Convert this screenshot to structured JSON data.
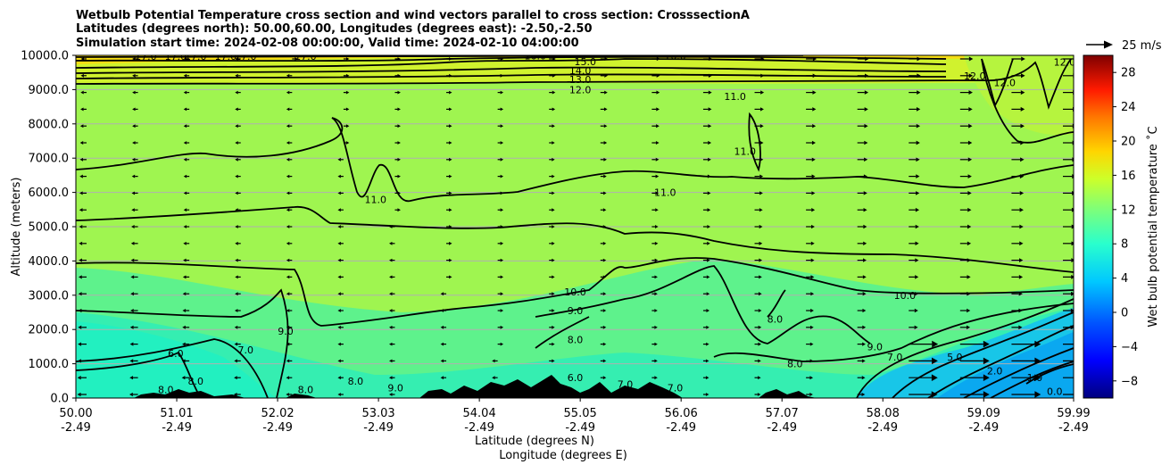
{
  "chart_data": {
    "type": "contour",
    "title_lines": [
      "Wetbulb Potential Temperature cross section and wind vectors parallel to cross section: CrosssectionA",
      "Latitudes (degrees north): 50.00,60.00, Longitudes (degrees east): -2.50,-2.50",
      "Simulation start time: 2024-02-08 00:00:00, Valid time: 2024-02-10 04:00:00"
    ],
    "xlabel_line1": "Latitude (degrees N)",
    "xlabel_line2": "Longitude (degrees E)",
    "ylabel": "Altitude (meters)",
    "x_ticks": [
      {
        "lat": "50.00",
        "lon": "-2.49"
      },
      {
        "lat": "51.01",
        "lon": "-2.49"
      },
      {
        "lat": "52.02",
        "lon": "-2.49"
      },
      {
        "lat": "53.03",
        "lon": "-2.49"
      },
      {
        "lat": "54.04",
        "lon": "-2.49"
      },
      {
        "lat": "55.05",
        "lon": "-2.49"
      },
      {
        "lat": "56.06",
        "lon": "-2.49"
      },
      {
        "lat": "57.07",
        "lon": "-2.49"
      },
      {
        "lat": "58.08",
        "lon": "-2.49"
      },
      {
        "lat": "59.09",
        "lon": "-2.49"
      },
      {
        "lat": "59.99",
        "lon": "-2.49"
      }
    ],
    "xlim": [
      50.0,
      59.99
    ],
    "y_ticks": [
      0,
      1000,
      2000,
      3000,
      4000,
      5000,
      6000,
      7000,
      8000,
      9000,
      10000
    ],
    "y_tick_labels": [
      "0.0",
      "1000.0",
      "2000.0",
      "3000.0",
      "4000.0",
      "5000.0",
      "6000.0",
      "7000.0",
      "8000.0",
      "9000.0",
      "10000.0"
    ],
    "ylim": [
      0,
      10000
    ],
    "grid": "horizontal",
    "colorbar": {
      "label": "Wet bulb potential temperature ˚C",
      "ticks": [
        -8,
        -4,
        0,
        4,
        8,
        12,
        16,
        20,
        24,
        28
      ],
      "tick_labels": [
        "−8",
        "−4",
        "0",
        "4",
        "8",
        "12",
        "16",
        "20",
        "24",
        "28"
      ],
      "range": [
        -10,
        30
      ],
      "colormap": "jet"
    },
    "quiver_key": {
      "label": "25 m/s",
      "speed": 25
    },
    "contour_labels": [
      {
        "text": "17.0",
        "lat": 50.7,
        "alt": 9980
      },
      {
        "text": "17.0",
        "lat": 51.0,
        "alt": 9980
      },
      {
        "text": "17.0",
        "lat": 51.2,
        "alt": 9980
      },
      {
        "text": "17.0",
        "lat": 51.5,
        "alt": 9980
      },
      {
        "text": "17.0",
        "lat": 51.7,
        "alt": 9980
      },
      {
        "text": "17.0",
        "lat": 52.3,
        "alt": 9980
      },
      {
        "text": "16.0",
        "lat": 54.6,
        "alt": 9990
      },
      {
        "text": "15.0",
        "lat": 55.1,
        "alt": 9820
      },
      {
        "text": "14.0",
        "lat": 55.05,
        "alt": 9560
      },
      {
        "text": "13.0",
        "lat": 55.05,
        "alt": 9300
      },
      {
        "text": "12.0",
        "lat": 55.05,
        "alt": 9000
      },
      {
        "text": "16.0",
        "lat": 56.0,
        "alt": 9990
      },
      {
        "text": "11.0",
        "lat": 56.6,
        "alt": 8800
      },
      {
        "text": "11.0",
        "lat": 56.7,
        "alt": 7200
      },
      {
        "text": "12.0",
        "lat": 59.3,
        "alt": 9200
      },
      {
        "text": "12.0",
        "lat": 59.0,
        "alt": 9400
      },
      {
        "text": "12.0",
        "lat": 59.9,
        "alt": 9800
      },
      {
        "text": "11.0",
        "lat": 53.0,
        "alt": 5800
      },
      {
        "text": "11.0",
        "lat": 55.9,
        "alt": 6000
      },
      {
        "text": "10.0",
        "lat": 55.0,
        "alt": 3100
      },
      {
        "text": "10.0",
        "lat": 58.3,
        "alt": 3000
      },
      {
        "text": "9.0",
        "lat": 55.0,
        "alt": 2550
      },
      {
        "text": "9.0",
        "lat": 52.1,
        "alt": 1950
      },
      {
        "text": "8.0",
        "lat": 57.0,
        "alt": 2300
      },
      {
        "text": "8.0",
        "lat": 55.0,
        "alt": 1700
      },
      {
        "text": "8.0",
        "lat": 57.2,
        "alt": 1000
      },
      {
        "text": "7.0",
        "lat": 51.7,
        "alt": 1400
      },
      {
        "text": "9.0",
        "lat": 58.0,
        "alt": 1500
      },
      {
        "text": "7.0",
        "lat": 58.2,
        "alt": 1200
      },
      {
        "text": "5.0",
        "lat": 58.8,
        "alt": 1200
      },
      {
        "text": "6.0",
        "lat": 51.0,
        "alt": 1300
      },
      {
        "text": "8.0",
        "lat": 52.3,
        "alt": 250
      },
      {
        "text": "8.0",
        "lat": 52.8,
        "alt": 500
      },
      {
        "text": "9.0",
        "lat": 53.2,
        "alt": 300
      },
      {
        "text": "8.0",
        "lat": 51.2,
        "alt": 500
      },
      {
        "text": "8.0",
        "lat": 50.9,
        "alt": 250
      },
      {
        "text": "7.0",
        "lat": 55.5,
        "alt": 400
      },
      {
        "text": "7.0",
        "lat": 56.0,
        "alt": 300
      },
      {
        "text": "6.0",
        "lat": 55.0,
        "alt": 600
      },
      {
        "text": "2.0",
        "lat": 59.2,
        "alt": 800
      },
      {
        "text": "1.0",
        "lat": 59.6,
        "alt": 600
      },
      {
        "text": "0.0",
        "lat": 59.8,
        "alt": 200
      }
    ]
  },
  "colors": {
    "high_band": "#ffd700",
    "upper_band": "#d9f226",
    "mid_band": "#9ff550",
    "low_band": "#3ff29f",
    "cold_zone": "#00b4f0",
    "contour": "#000000",
    "terrain": "#000000",
    "grid": "#b0b0b0"
  }
}
